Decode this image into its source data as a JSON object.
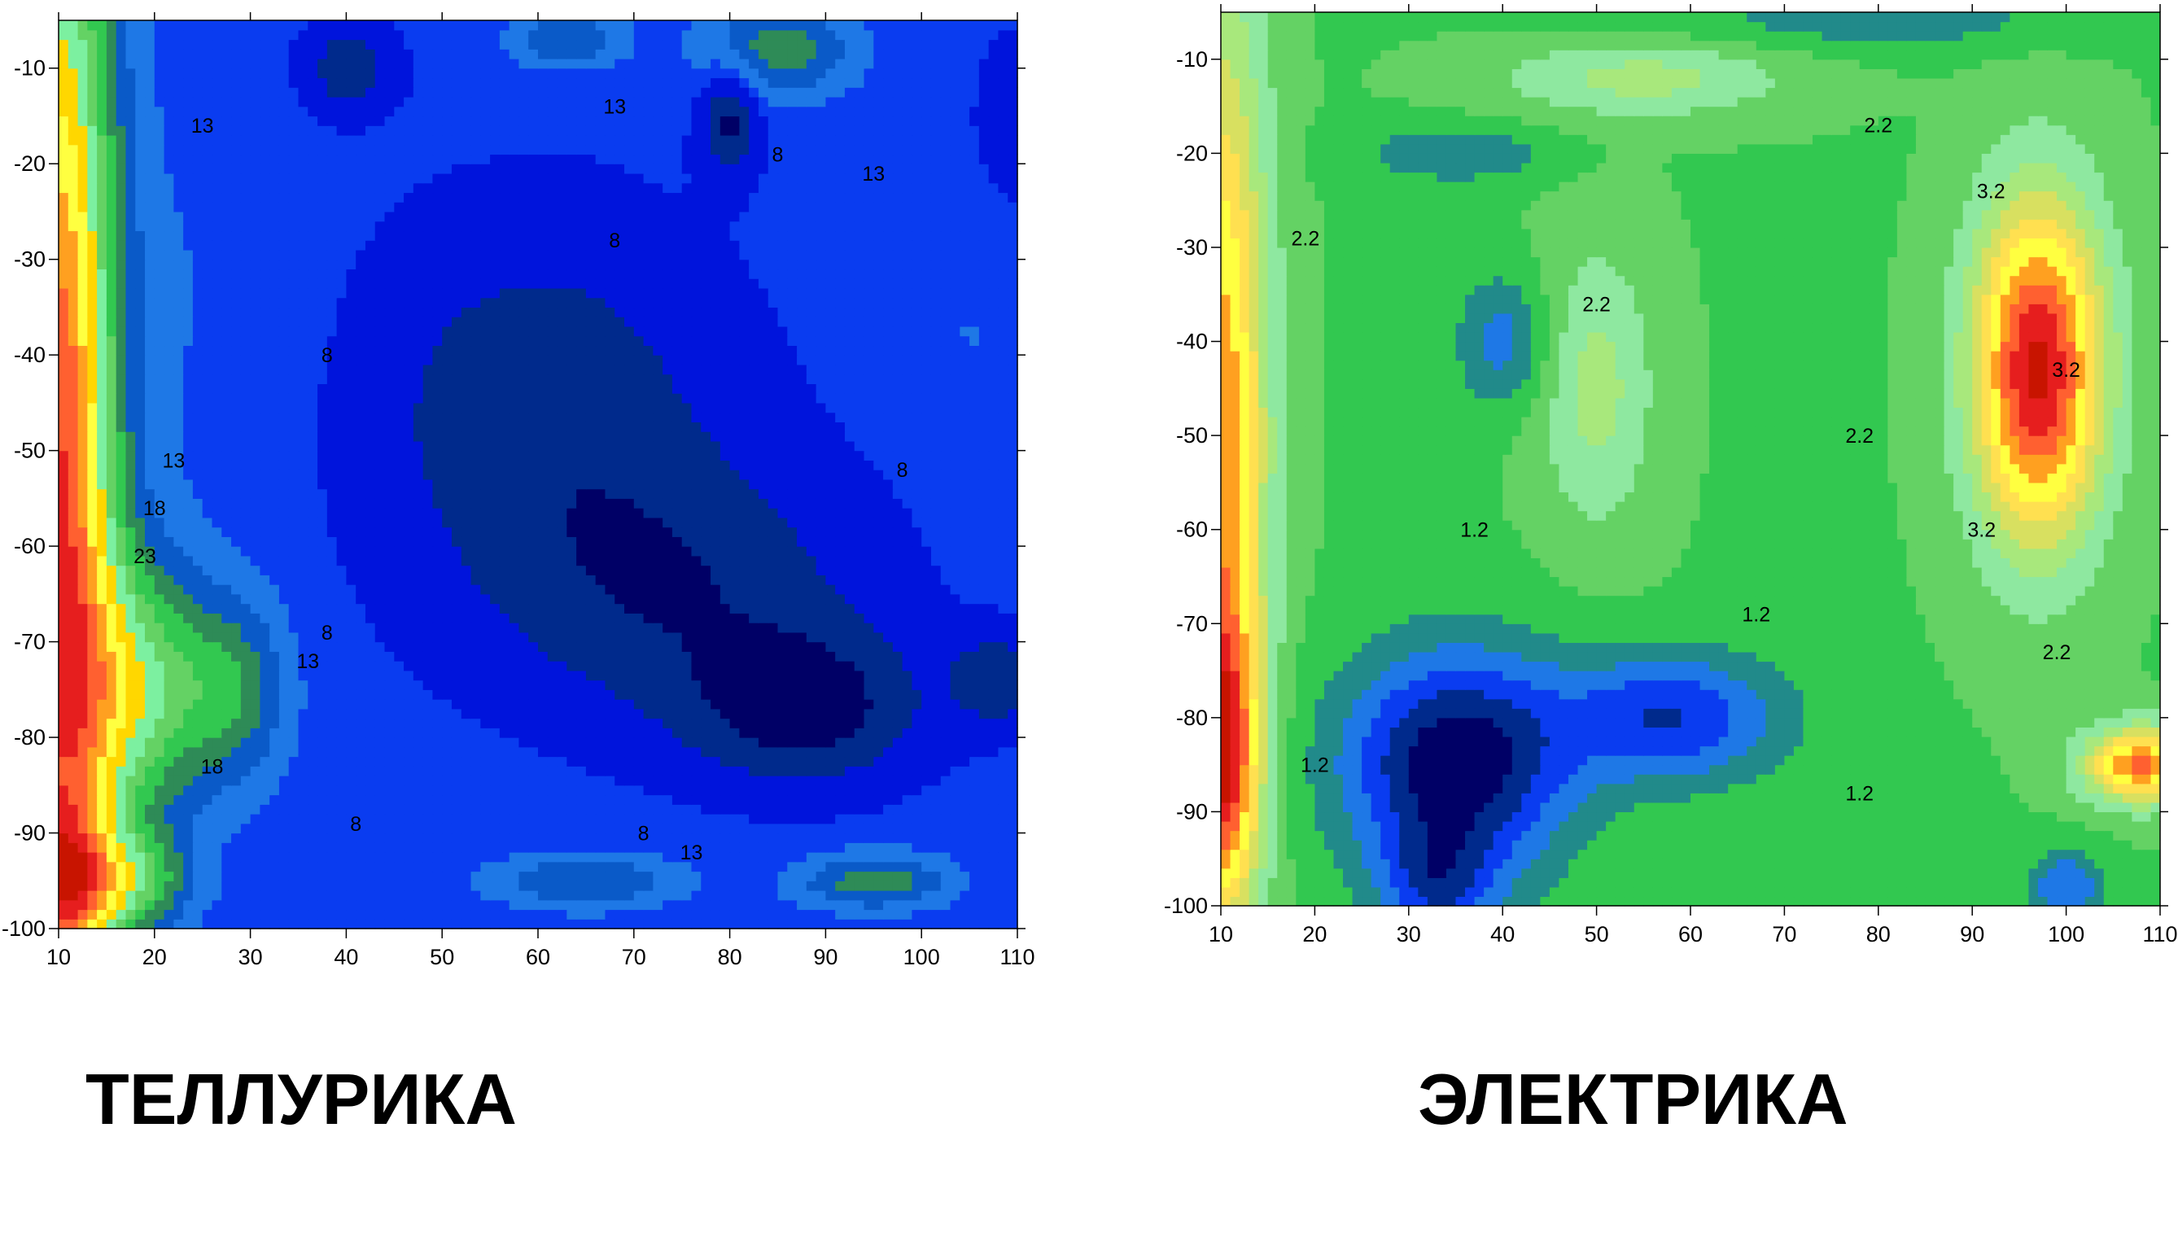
{
  "chart_data": [
    {
      "type": "heatmap",
      "subtype": "filled-contour",
      "title": "ТЕЛЛУРИКА",
      "xlabel": "",
      "ylabel": "",
      "xlim": [
        10,
        110
      ],
      "ylim": [
        -100,
        -5
      ],
      "x_ticks": [
        10,
        20,
        30,
        40,
        50,
        60,
        70,
        80,
        90,
        100,
        110
      ],
      "y_ticks": [
        -10,
        -20,
        -30,
        -40,
        -50,
        -60,
        -70,
        -80,
        -90,
        -100
      ],
      "x_tick_labels": [
        "10",
        "20",
        "30",
        "40",
        "50",
        "60",
        "70",
        "80",
        "90",
        "100",
        "110"
      ],
      "y_tick_labels": [
        "-10",
        "-20",
        "-30",
        "-40",
        "-50",
        "-60",
        "-70",
        "-80",
        "-90",
        "-100"
      ],
      "grid": false,
      "palette": [
        "#000066",
        "#002a8c",
        "#0014dc",
        "#0a3cf0",
        "#1e78e6",
        "#0a5ac8",
        "#2e8b57",
        "#32c850",
        "#64d264",
        "#7cf0a0",
        "#ffd700",
        "#ffff40",
        "#ffa020",
        "#ff6030",
        "#e61e1e",
        "#c81400"
      ],
      "contour_labels": [
        {
          "x": 25,
          "y": -16,
          "text": "13"
        },
        {
          "x": 68,
          "y": -14,
          "text": "13"
        },
        {
          "x": 95,
          "y": -21,
          "text": "13"
        },
        {
          "x": 85,
          "y": -19,
          "text": "8"
        },
        {
          "x": 68,
          "y": -28,
          "text": "8"
        },
        {
          "x": 38,
          "y": -40,
          "text": "8"
        },
        {
          "x": 98,
          "y": -52,
          "text": "8"
        },
        {
          "x": 22,
          "y": -51,
          "text": "13"
        },
        {
          "x": 20,
          "y": -56,
          "text": "18"
        },
        {
          "x": 19,
          "y": -61,
          "text": "23"
        },
        {
          "x": 38,
          "y": -69,
          "text": "8"
        },
        {
          "x": 36,
          "y": -72,
          "text": "13"
        },
        {
          "x": 26,
          "y": -83,
          "text": "18"
        },
        {
          "x": 41,
          "y": -89,
          "text": "8"
        },
        {
          "x": 71,
          "y": -90,
          "text": "8"
        },
        {
          "x": 76,
          "y": -92,
          "text": "13"
        }
      ],
      "field": {
        "base": 10,
        "features": [
          {
            "x": 10,
            "y": -55,
            "sx": 6,
            "sy": 70,
            "a": 16
          },
          {
            "x": 18,
            "y": -75,
            "sx": 7,
            "sy": 14,
            "a": 8
          },
          {
            "x": 18,
            "y": -95,
            "sx": 6,
            "sy": 5,
            "a": 6
          },
          {
            "x": 10,
            "y": -95,
            "sx": 6,
            "sy": 8,
            "a": 6
          },
          {
            "x": 28,
            "y": -75,
            "sx": 6,
            "sy": 10,
            "a": 5
          },
          {
            "x": 25,
            "y": -35,
            "sx": 12,
            "sy": 25,
            "a": 1
          },
          {
            "x": 85,
            "y": -8,
            "sx": 8,
            "sy": 5,
            "a": 5
          },
          {
            "x": 63,
            "y": -7,
            "sx": 6,
            "sy": 3,
            "a": 4
          },
          {
            "x": 65,
            "y": -95,
            "sx": 10,
            "sy": 3,
            "a": 4
          },
          {
            "x": 95,
            "y": -95,
            "sx": 8,
            "sy": 3,
            "a": 5
          },
          {
            "x": 105,
            "y": -38,
            "sx": 7,
            "sy": 10,
            "a": 1
          },
          {
            "x": 60,
            "y": -45,
            "sx": 20,
            "sy": 20,
            "a": -3
          },
          {
            "x": 75,
            "y": -65,
            "sx": 20,
            "sy": 14,
            "a": -3
          },
          {
            "x": 88,
            "y": -77,
            "sx": 12,
            "sy": 8,
            "a": -4
          },
          {
            "x": 108,
            "y": -74,
            "sx": 5,
            "sy": 5,
            "a": -3
          },
          {
            "x": 80,
            "y": -15,
            "sx": 3,
            "sy": 6,
            "a": -4
          },
          {
            "x": 40,
            "y": -10,
            "sx": 5,
            "sy": 5,
            "a": -3
          },
          {
            "x": 110,
            "y": -15,
            "sx": 4,
            "sy": 8,
            "a": -2
          }
        ]
      }
    },
    {
      "type": "heatmap",
      "subtype": "filled-contour",
      "title": "ЭЛЕКТРИКА",
      "xlabel": "",
      "ylabel": "",
      "xlim": [
        10,
        110
      ],
      "ylim": [
        -100,
        -5
      ],
      "x_ticks": [
        10,
        20,
        30,
        40,
        50,
        60,
        70,
        80,
        90,
        100,
        110
      ],
      "y_ticks": [
        -10,
        -20,
        -30,
        -40,
        -50,
        -60,
        -70,
        -80,
        -90,
        -100
      ],
      "x_tick_labels": [
        "10",
        "20",
        "30",
        "40",
        "50",
        "60",
        "70",
        "80",
        "90",
        "100",
        "110"
      ],
      "y_tick_labels": [
        "-10",
        "-20",
        "-30",
        "-40",
        "-50",
        "-60",
        "-70",
        "-80",
        "-90",
        "-100"
      ],
      "grid": false,
      "palette": [
        "#000066",
        "#002a8c",
        "#0a3cf0",
        "#1e78e6",
        "#218a8a",
        "#32c850",
        "#64d264",
        "#8ee8a0",
        "#a8e87c",
        "#d8e060",
        "#ffe050",
        "#ffff40",
        "#ffa020",
        "#ff6030",
        "#e61e1e",
        "#c81400"
      ],
      "contour_labels": [
        {
          "x": 80,
          "y": -17,
          "text": "2.2"
        },
        {
          "x": 92,
          "y": -24,
          "text": "3.2"
        },
        {
          "x": 19,
          "y": -29,
          "text": "2.2"
        },
        {
          "x": 50,
          "y": -36,
          "text": "2.2"
        },
        {
          "x": 100,
          "y": -43,
          "text": "3.2"
        },
        {
          "x": 78,
          "y": -50,
          "text": "2.2"
        },
        {
          "x": 37,
          "y": -60,
          "text": "1.2"
        },
        {
          "x": 91,
          "y": -60,
          "text": "3.2"
        },
        {
          "x": 67,
          "y": -69,
          "text": "1.2"
        },
        {
          "x": 99,
          "y": -73,
          "text": "2.2"
        },
        {
          "x": 20,
          "y": -85,
          "text": "1.2"
        },
        {
          "x": 78,
          "y": -88,
          "text": "1.2"
        }
      ],
      "field": {
        "base": 1.7,
        "features": [
          {
            "x": 97,
            "y": -43,
            "sx": 7,
            "sy": 18,
            "a": 1.9
          },
          {
            "x": 10,
            "y": -50,
            "sx": 5,
            "sy": 45,
            "a": 1.4
          },
          {
            "x": 10,
            "y": -85,
            "sx": 4,
            "sy": 15,
            "a": 1.3
          },
          {
            "x": 108,
            "y": -85,
            "sx": 6,
            "sy": 4,
            "a": 1.5
          },
          {
            "x": 50,
            "y": -45,
            "sx": 6,
            "sy": 15,
            "a": 0.5
          },
          {
            "x": 55,
            "y": -12,
            "sx": 15,
            "sy": 4,
            "a": 0.5
          },
          {
            "x": 35,
            "y": -85,
            "sx": 12,
            "sy": 12,
            "a": -1.2
          },
          {
            "x": 58,
            "y": -80,
            "sx": 12,
            "sy": 7,
            "a": -0.8
          },
          {
            "x": 33,
            "y": -98,
            "sx": 6,
            "sy": 6,
            "a": -0.6
          },
          {
            "x": 40,
            "y": -40,
            "sx": 5,
            "sy": 7,
            "a": -0.5
          },
          {
            "x": 35,
            "y": -20,
            "sx": 10,
            "sy": 3,
            "a": -0.4
          },
          {
            "x": 80,
            "y": -6,
            "sx": 25,
            "sy": 3,
            "a": -0.3
          },
          {
            "x": 100,
            "y": -98,
            "sx": 4,
            "sy": 4,
            "a": -0.6
          }
        ]
      }
    }
  ],
  "captions": {
    "left": "ТЕЛЛУРИКА",
    "right": "ЭЛЕКТРИКА"
  }
}
